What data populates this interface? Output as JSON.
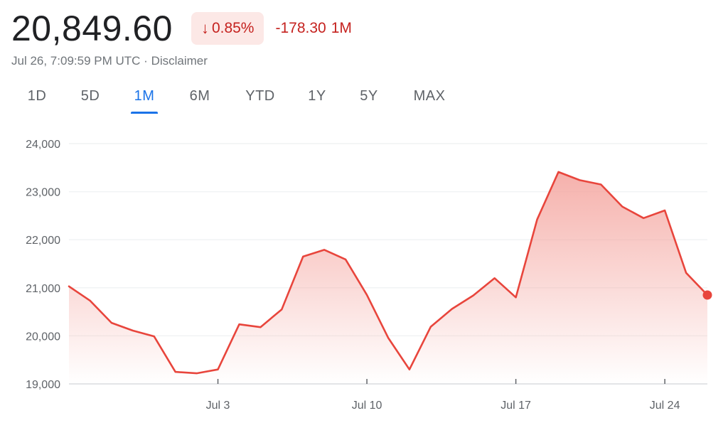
{
  "quote": {
    "price": "20,849.60",
    "change_percent": "0.85%",
    "change_arrow_icon": "arrow-down-icon",
    "change_value": "-178.30",
    "change_period": "1M",
    "timestamp": "Jul 26, 7:09:59 PM UTC",
    "separator": "·",
    "disclaimer": "Disclaimer"
  },
  "ranges": [
    "1D",
    "5D",
    "1M",
    "6M",
    "YTD",
    "1Y",
    "5Y",
    "MAX"
  ],
  "active_range": "1M",
  "colors": {
    "line": "#e8453c",
    "fill": "#f4a39d",
    "down_text": "#c5221f",
    "down_bg": "#fce8e6",
    "active_tab": "#1a73e8",
    "grid": "#f1f3f4",
    "axis_text": "#5f6368"
  },
  "chart_data": {
    "type": "area",
    "ylim": [
      19000,
      24000
    ],
    "yticks": [
      19000,
      20000,
      21000,
      22000,
      23000,
      24000
    ],
    "ytick_labels": [
      "19,000",
      "20,000",
      "21,000",
      "22,000",
      "23,000",
      "24,000"
    ],
    "x_tick_labels": [
      "Jul 3",
      "Jul 10",
      "Jul 17",
      "Jul 24"
    ],
    "x": [
      "Jun 26",
      "Jun 27",
      "Jun 28",
      "Jun 29",
      "Jun 30",
      "Jul 1",
      "Jul 2",
      "Jul 3",
      "Jul 4",
      "Jul 5",
      "Jul 6",
      "Jul 7",
      "Jul 8",
      "Jul 9",
      "Jul 10",
      "Jul 11",
      "Jul 12",
      "Jul 13",
      "Jul 14",
      "Jul 15",
      "Jul 16",
      "Jul 17",
      "Jul 18",
      "Jul 19",
      "Jul 20",
      "Jul 21",
      "Jul 22",
      "Jul 23",
      "Jul 24",
      "Jul 25",
      "Jul 26"
    ],
    "values": [
      21030,
      20730,
      20270,
      20110,
      19990,
      19250,
      19220,
      19300,
      20240,
      20180,
      20550,
      21650,
      21790,
      21590,
      20850,
      19960,
      19300,
      20190,
      20560,
      20840,
      21200,
      20800,
      22420,
      23410,
      23240,
      23150,
      22690,
      22450,
      22610,
      21310,
      20849.6
    ],
    "series": [
      {
        "values_ref": "values"
      }
    ],
    "grid": true,
    "legend": "none"
  }
}
